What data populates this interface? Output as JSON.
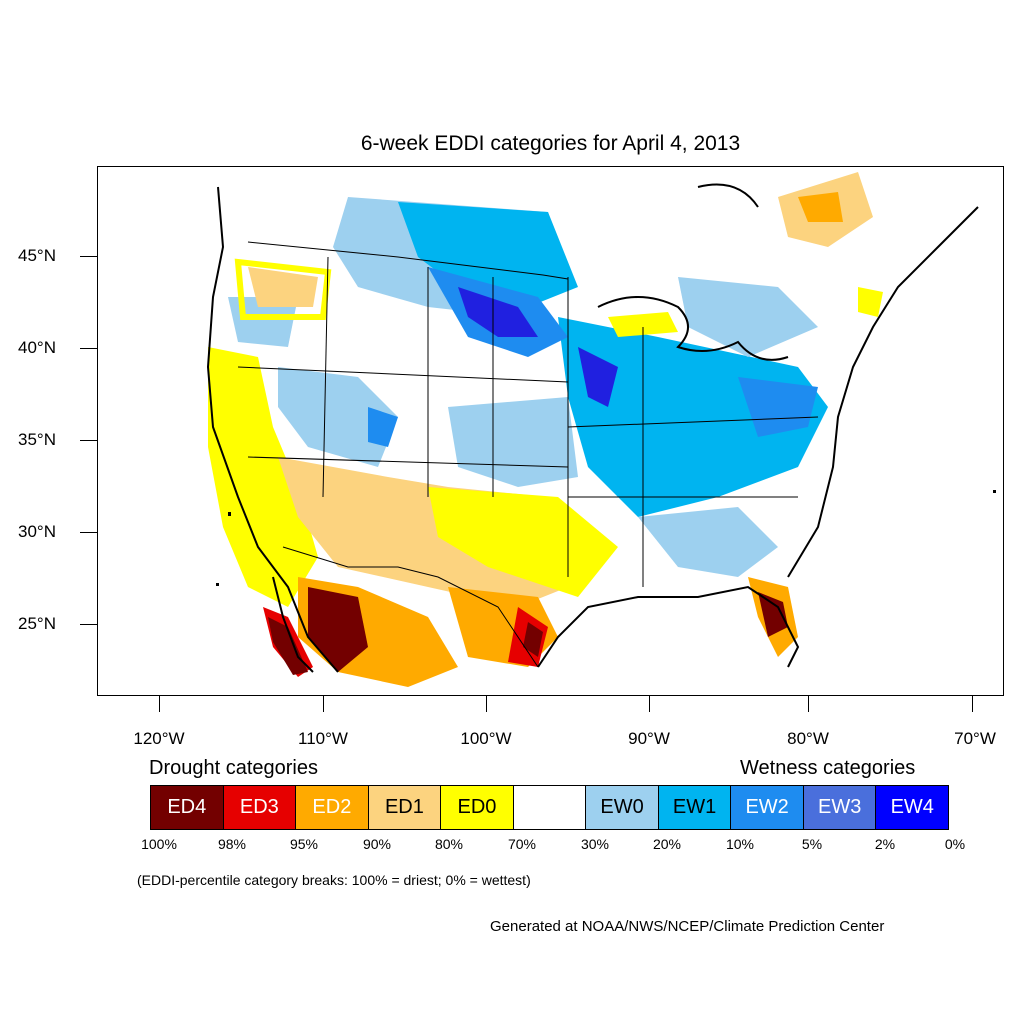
{
  "title": "6-week EDDI categories for April 4, 2013",
  "lat_labels": [
    "45°N",
    "40°N",
    "35°N",
    "30°N",
    "25°N"
  ],
  "lon_labels": [
    "120°W",
    "110°W",
    "100°W",
    "90°W",
    "80°W",
    "70°W"
  ],
  "legend": {
    "drought_heading": "Drought categories",
    "wetness_heading": "Wetness categories",
    "categories": [
      {
        "label": "ED4",
        "color": "#730000",
        "text_color": "#ffffff"
      },
      {
        "label": "ED3",
        "color": "#e60000",
        "text_color": "#ffffff"
      },
      {
        "label": "ED2",
        "color": "#ffaa00",
        "text_color": "#ffffff"
      },
      {
        "label": "ED1",
        "color": "#fcd37f",
        "text_color": "#000000"
      },
      {
        "label": "ED0",
        "color": "#ffff00",
        "text_color": "#000000"
      },
      {
        "label": "",
        "color": "#ffffff",
        "text_color": "#000000"
      },
      {
        "label": "EW0",
        "color": "#9dd0ef",
        "text_color": "#000000"
      },
      {
        "label": "EW1",
        "color": "#00b4f0",
        "text_color": "#000000"
      },
      {
        "label": "EW2",
        "color": "#1e8cf0",
        "text_color": "#ffffff"
      },
      {
        "label": "EW3",
        "color": "#4a6fdc",
        "text_color": "#ffffff"
      },
      {
        "label": "EW4",
        "color": "#0000ff",
        "text_color": "#ffffff"
      }
    ],
    "breaks": [
      "100%",
      "98%",
      "95%",
      "90%",
      "80%",
      "70%",
      "30%",
      "20%",
      "10%",
      "5%",
      "2%",
      "0%"
    ]
  },
  "note": "(EDDI-percentile category breaks: 100% = driest; 0% = wettest)",
  "credit": "Generated at NOAA/NWS/NCEP/Climate Prediction Center"
}
